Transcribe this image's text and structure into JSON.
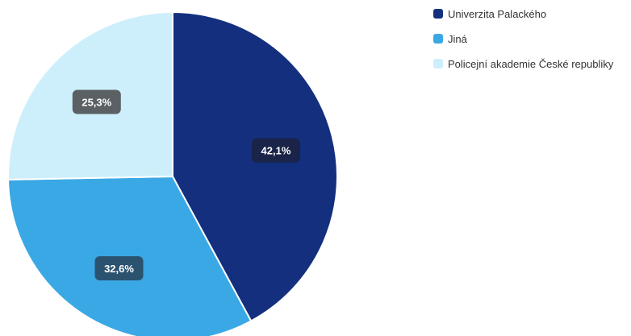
{
  "chart_data": {
    "type": "pie",
    "title": "",
    "slices": [
      {
        "label": "Univerzita Palackého",
        "value": 42.1,
        "value_label": "42,1%",
        "color": "#132f7e"
      },
      {
        "label": "Jiná",
        "value": 32.6,
        "value_label": "32,6%",
        "color": "#3aa8e4"
      },
      {
        "label": "Policejní akademie České republiky",
        "value": 25.3,
        "value_label": "25,3%",
        "color": "#cdeffb"
      }
    ],
    "legend_position": "top-right",
    "data_label_colors": {
      "text": "#ffffff"
    }
  }
}
